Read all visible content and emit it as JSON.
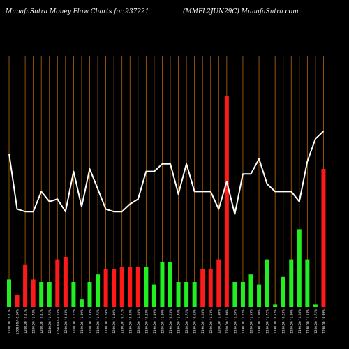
{
  "header": {
    "title_left": "MunafaSutra  Money Flow  Charts for 937221",
    "title_right": "(MMFL2JUN29C) MunafaSutra.com"
  },
  "colors": {
    "background": "#000000",
    "grid": "#b8650a",
    "positive": "#22ee22",
    "negative": "#ff1a1a",
    "line": "#ffffff",
    "text": "#ffffff"
  },
  "chart_data": {
    "type": "bar",
    "grid": "vertical",
    "bar_ylim": [
      0,
      100
    ],
    "line_ylim": [
      0,
      100
    ],
    "series": [
      {
        "kind": "bar",
        "values": [
          11,
          5,
          17,
          11,
          10,
          10,
          19,
          20,
          10,
          3,
          10,
          13,
          15,
          15,
          16,
          16,
          16,
          16,
          9,
          18,
          18,
          10,
          10,
          10,
          15,
          15,
          19,
          84,
          10,
          10,
          13,
          9,
          19,
          1,
          12,
          19,
          31,
          19,
          1,
          55
        ],
        "colors": [
          "g",
          "r",
          "r",
          "r",
          "g",
          "g",
          "r",
          "r",
          "g",
          "g",
          "g",
          "g",
          "r",
          "r",
          "r",
          "r",
          "r",
          "g",
          "g",
          "g",
          "g",
          "g",
          "g",
          "g",
          "r",
          "r",
          "r",
          "r",
          "g",
          "g",
          "g",
          "g",
          "g",
          "g",
          "g",
          "g",
          "g",
          "g",
          "g",
          "r"
        ]
      },
      {
        "kind": "line",
        "values": [
          61,
          39,
          38,
          38,
          46,
          42,
          43,
          38,
          54,
          40,
          55,
          47,
          39,
          38,
          38,
          41,
          43,
          54,
          54,
          57,
          57,
          45,
          57,
          46,
          46,
          46,
          39,
          50,
          37,
          53,
          53,
          59,
          49,
          46,
          46,
          46,
          42,
          58,
          67,
          70
        ]
      }
    ],
    "x_tick_labels": [
      "1240.00 / 2.01%",
      "1200.00 / -2.60%",
      "1200.00 / 2.01%",
      "1200.00 / 1.72%",
      "1200.00 / 2.01%",
      "1240.00 / 1.75%",
      "1190.00 / -0.15%",
      "1200.00 / 0.33%",
      "1200.00 / 1.72%",
      "1190.00 / 1.39%",
      "1200.00 / 1.53%",
      "1190.00 / 1.75%",
      "1190.00 / 1.28%",
      "1200.00 / 1.40%",
      "1190.00 / 0.71%",
      "1190.00 / 0.33%",
      "1200.00 / 1.28%",
      "1190.00 / 0.23%",
      "1190.00 / 1.39%",
      "1200.00 / 1.20%",
      "1190.00 / 0.23%",
      "1190.00 / 1.75%",
      "1200.00 / 1.72%",
      "1190.00 / 0.62%",
      "1190.00 / 1.28%",
      "1200.00 / 1.53%",
      "1200.00 / 1.40%",
      "1200.00 / 1.39%",
      "1190.00 / 1.20%",
      "1190.00 / 1.72%",
      "1200.00 / 1.53%",
      "1190.00 / 1.40%",
      "1190.00 / 1.72%",
      "1190.00 / 0.62%",
      "1190.00 / 0.23%",
      "1200.00 / 1.39%",
      "1190.00 / 1.28%",
      "1190.00 / 1.53%",
      "1200.00 / 1.72%",
      "1290.00 / 0.99%"
    ]
  }
}
